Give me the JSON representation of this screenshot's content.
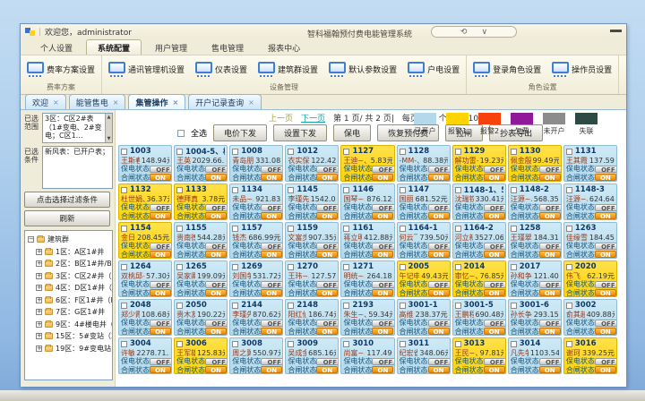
{
  "icons": {
    "close": "×",
    "plus": "+",
    "minus": "−",
    "refresh_glyph": "⟲",
    "chevron_glyph": "∨",
    "up_arrow": "▲",
    "down_arrow": "▼"
  },
  "window": {
    "welcome": "欢迎您，administrator",
    "separator": "|",
    "product_title": "智科福翰预付费电能管理系统"
  },
  "ribbon": {
    "tabs": [
      "个人设置",
      "系统配置",
      "用户管理",
      "售电管理",
      "报表中心"
    ],
    "active_tab": "系统配置",
    "groups": [
      {
        "label": "费率方案",
        "buttons": [
          "费率方案设置"
        ]
      },
      {
        "label": "设备管理",
        "buttons": [
          "通讯管理机设置",
          "仪表设置",
          "建筑群设置",
          "默认参数设置",
          "户电设置"
        ]
      },
      {
        "label": "角色设置",
        "buttons": [
          "登录角色设置",
          "操作员设置"
        ]
      }
    ]
  },
  "doc_tabs": [
    "欢迎",
    "能管售电",
    "集管操作",
    "开户记录查询"
  ],
  "active_doc_tab": "集管操作",
  "sidebar": {
    "range_label": "已选范围",
    "range_value": "3区：C区2#表（1#变电、2#变电；C区1…",
    "condition_label": "已选条件",
    "condition_value": "新风表：已开户表；",
    "filter_button": "点击选择过滤条件",
    "refresh_button": "刷新",
    "tree_root": "建筑群",
    "tree_items": [
      "1区：A区1#井",
      "2区：B区1#井/B区1#井",
      "3区：C区2#井（1#变…",
      "4区：D区1#井（D区1…",
      "6区：F区1#井（F区1#…",
      "7区：G区1#井",
      "9区：4#楼电井（4#楼…",
      "15区：5#变站（3#变…",
      "19区：9#变电站（2#…"
    ]
  },
  "pagination": {
    "prev": "上一页",
    "next": "下一页",
    "page_info": "第  1 页/ 共  2 页|",
    "per_page_info": "每页 100 个|",
    "total_info": "共  108 个|"
  },
  "toolbar": {
    "select_all": "全选",
    "buttons": [
      "电价下发",
      "设置下发",
      "保电",
      "恢复预付费",
      "拉闸",
      "抄表导出"
    ]
  },
  "legend": [
    {
      "label": "已开户",
      "color": "#b3d9ea"
    },
    {
      "label": "报警1",
      "color": "#ffd400"
    },
    {
      "label": "报警2",
      "color": "#f8420e"
    },
    {
      "label": "欠费",
      "color": "#8f189b"
    },
    {
      "label": "未开户",
      "color": "#8c8c8c"
    },
    {
      "label": "失联",
      "color": "#2e4a44"
    }
  ],
  "grid": {
    "labels": {
      "protect": "保电状态",
      "gate": "合闸状态",
      "off": "OFF",
      "on": "ON"
    },
    "cards": [
      {
        "room": "1003",
        "name": "王斯春",
        "balance": "148.94元",
        "status": "open"
      },
      {
        "room": "1004-5、相一",
        "name": "王英",
        "balance": "2029.66..",
        "status": "open"
      },
      {
        "room": "1008",
        "name": "青岛朋~",
        "balance": "331.08元",
        "status": "open"
      },
      {
        "room": "1012",
        "name": "衣实保~",
        "balance": "122.42元",
        "status": "open"
      },
      {
        "room": "1127",
        "name": "王迪~、",
        "balance": "5.83元",
        "status": "alarm1"
      },
      {
        "room": "1128",
        "name": "-MM-、",
        "balance": "88.38元",
        "status": "open"
      },
      {
        "room": "1129",
        "name": "解功雷~",
        "balance": "19.23元",
        "status": "alarm1"
      },
      {
        "room": "1130",
        "name": "佩金殷",
        "balance": "99.49元",
        "status": "alarm1"
      },
      {
        "room": "1131",
        "name": "王其霞~",
        "balance": "137.59元",
        "status": "open"
      },
      {
        "room": "1132",
        "name": "杜世娟、",
        "balance": "36.37元",
        "status": "alarm1"
      },
      {
        "room": "1133",
        "name": "德拜真",
        "balance": "3.78元",
        "status": "alarm1"
      },
      {
        "room": "1134",
        "name": "未品~、",
        "balance": "921.83元",
        "status": "open"
      },
      {
        "room": "1145",
        "name": "李瑾先~",
        "balance": "1542.00..",
        "status": "open"
      },
      {
        "room": "1146",
        "name": "国琴~、",
        "balance": "876.12元",
        "status": "open"
      },
      {
        "room": "1147",
        "name": "国丽",
        "balance": "681.52元",
        "status": "open"
      },
      {
        "room": "1148-1、522",
        "name": "沈瑞铁",
        "balance": "330.41元",
        "status": "open"
      },
      {
        "room": "1148-2",
        "name": "汪源~、",
        "balance": "568.35元",
        "status": "open"
      },
      {
        "room": "1148-3",
        "name": "汪源~、",
        "balance": "624.64元",
        "status": "open"
      },
      {
        "room": "1154",
        "name": "金日",
        "balance": "208.45元",
        "status": "alarm1"
      },
      {
        "room": "1155",
        "name": "贵南德",
        "balance": "544.28元",
        "status": "open"
      },
      {
        "room": "1157",
        "name": "钱杰",
        "balance": "686.99元",
        "status": "open"
      },
      {
        "room": "1159",
        "name": "文富步",
        "balance": "907.35元",
        "status": "open"
      },
      {
        "room": "1161",
        "name": "蒋立明",
        "balance": "412.88元",
        "status": "open"
      },
      {
        "room": "1164-1",
        "name": "何云飞",
        "balance": "739.50元",
        "status": "open"
      },
      {
        "room": "1164-2",
        "name": "河立新",
        "balance": "3527.06..",
        "status": "open"
      },
      {
        "room": "1258",
        "name": "王瑾翠~",
        "balance": "184.31元",
        "status": "open"
      },
      {
        "room": "1263",
        "name": "佳缘雪~",
        "balance": "184.45元",
        "status": "open"
      },
      {
        "room": "1264",
        "name": "双桃邱~",
        "balance": "57.30元",
        "status": "open"
      },
      {
        "room": "1265",
        "name": "吴家卿",
        "balance": "199.09元",
        "status": "open"
      },
      {
        "room": "1269",
        "name": "刘国争",
        "balance": "531.72元",
        "status": "open"
      },
      {
        "room": "1270",
        "name": "王玮~、",
        "balance": "127.57元",
        "status": "open"
      },
      {
        "room": "1271",
        "name": "明统~、",
        "balance": "264.18元",
        "status": "open"
      },
      {
        "room": "2005",
        "name": "午记申",
        "balance": "49.43元",
        "status": "alarm1"
      },
      {
        "room": "2014",
        "name": "审忆~、",
        "balance": "76.85元",
        "status": "alarm1"
      },
      {
        "room": "2017",
        "name": "孙和争~",
        "balance": "121.40元",
        "status": "open"
      },
      {
        "room": "2020",
        "name": "伟飞",
        "balance": "62.19元",
        "status": "alarm1"
      },
      {
        "room": "2048",
        "name": "郑少霞",
        "balance": "108.68元",
        "status": "open"
      },
      {
        "room": "2050",
        "name": "贵木友",
        "balance": "190.22元",
        "status": "open"
      },
      {
        "room": "2144",
        "name": "李瑾先",
        "balance": "870.62元",
        "status": "open"
      },
      {
        "room": "2148",
        "name": "阳红仙",
        "balance": "186.74元",
        "status": "open"
      },
      {
        "room": "2193",
        "name": "朱生~、",
        "balance": "59.34元",
        "status": "open"
      },
      {
        "room": "3001-1",
        "name": "高维",
        "balance": "238.37元",
        "status": "open"
      },
      {
        "room": "3001-5",
        "name": "王鹏程",
        "balance": "690.48元",
        "status": "open"
      },
      {
        "room": "3001-6",
        "name": "孙长争~",
        "balance": "293.15元",
        "status": "open"
      },
      {
        "room": "3002",
        "name": "俞其越",
        "balance": "409.88元",
        "status": "open"
      },
      {
        "room": "3004",
        "name": "许敏",
        "balance": "2278.71..",
        "status": "open"
      },
      {
        "room": "3006",
        "name": "王军雄",
        "balance": "125.83元",
        "status": "alarm1"
      },
      {
        "room": "3008",
        "name": "周之翼",
        "balance": "550.97元",
        "status": "open"
      },
      {
        "room": "3009",
        "name": "吴成金",
        "balance": "685.16元",
        "status": "open"
      },
      {
        "room": "3010",
        "name": "尚富~、",
        "balance": "117.49元",
        "status": "open"
      },
      {
        "room": "3011",
        "name": "纪宏雀",
        "balance": "348.06元",
        "status": "open"
      },
      {
        "room": "3013",
        "name": "王民~、",
        "balance": "97.81元",
        "status": "alarm1"
      },
      {
        "room": "3014",
        "name": "凡先争",
        "balance": "1103.54..",
        "status": "open"
      },
      {
        "room": "3016",
        "name": "谢珂",
        "balance": "339.25元",
        "status": "alarm1"
      }
    ]
  }
}
